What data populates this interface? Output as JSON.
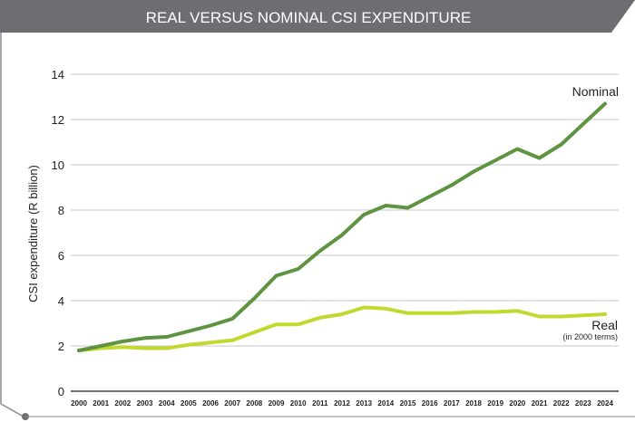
{
  "header": {
    "title": "REAL VERSUS NOMINAL CSI EXPENDITURE"
  },
  "colors": {
    "header_bg": "#6d6e71",
    "header_text": "#ffffff",
    "frame": "#8a8a8a",
    "grid": "#c8c8c8",
    "axis_text": "#231f20",
    "nominal": "#5e9441",
    "real": "#c3d82e"
  },
  "chart_data": {
    "type": "line",
    "title": "REAL VERSUS NOMINAL CSI EXPENDITURE",
    "xlabel": "",
    "ylabel": "CSI expenditure (R billion)",
    "ylim": [
      0,
      14
    ],
    "yticks": [
      0,
      2,
      4,
      6,
      8,
      10,
      12,
      14
    ],
    "grid": true,
    "categories": [
      "2000",
      "2001",
      "2002",
      "2003",
      "2004",
      "2005",
      "2006",
      "2007",
      "2008",
      "2009",
      "2010",
      "2011",
      "2012",
      "2013",
      "2014",
      "2015",
      "2016",
      "2017",
      "2018",
      "2019",
      "2020",
      "2021",
      "2022",
      "2023",
      "2024"
    ],
    "series": [
      {
        "name": "Nominal",
        "label": "Nominal",
        "values": [
          1.8,
          2.0,
          2.2,
          2.35,
          2.4,
          2.65,
          2.9,
          3.2,
          4.1,
          5.1,
          5.4,
          6.2,
          6.9,
          7.8,
          8.2,
          8.1,
          8.6,
          9.1,
          9.7,
          10.2,
          10.7,
          10.3,
          10.9,
          11.8,
          12.7
        ]
      },
      {
        "name": "Real",
        "label": "Real",
        "sublabel": "(in 2000 terms)",
        "values": [
          1.8,
          1.9,
          1.95,
          1.9,
          1.9,
          2.05,
          2.15,
          2.25,
          2.6,
          2.95,
          2.95,
          3.25,
          3.4,
          3.7,
          3.65,
          3.45,
          3.45,
          3.45,
          3.5,
          3.5,
          3.55,
          3.3,
          3.3,
          3.35,
          3.4
        ]
      }
    ]
  }
}
